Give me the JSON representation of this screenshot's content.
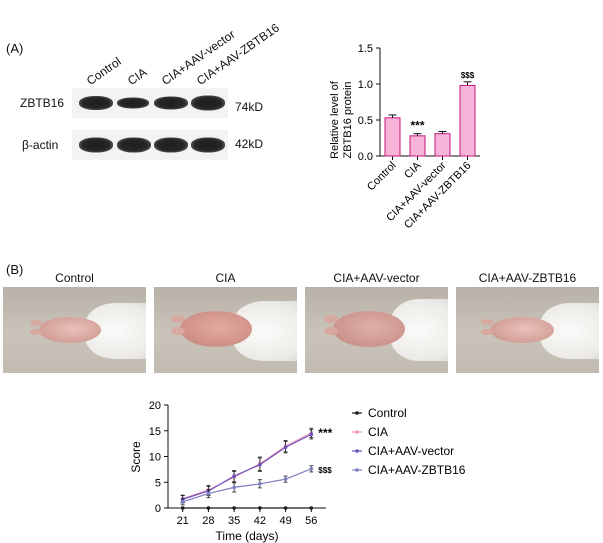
{
  "panelA": {
    "label": "(A)",
    "lanes": [
      "Control",
      "CIA",
      "CIA+AAV-vector",
      "CIA+AAV-ZBTB16"
    ],
    "blots": [
      {
        "name": "ZBTB16",
        "kd": "74kD"
      },
      {
        "name": "β-actin",
        "kd": "42kD"
      }
    ]
  },
  "panelB": {
    "label": "(B)",
    "photo_titles": [
      "Control",
      "CIA",
      "CIA+AAV-vector",
      "CIA+AAV-ZBTB16"
    ]
  },
  "colors": {
    "bar_fill": "#f7b3d8",
    "bar_edge": "#c2187a",
    "control": "#1a1a1a",
    "cia": "#f29cb7",
    "vector": "#6b4fbf",
    "zbtb16": "#7d7dc4"
  },
  "chart_data": [
    {
      "type": "bar",
      "categories": [
        "Control",
        "CIA",
        "CIA+AAV-vector",
        "CIA+AAV-ZBTB16"
      ],
      "values": [
        0.53,
        0.28,
        0.31,
        0.98
      ],
      "errors": [
        0.04,
        0.03,
        0.03,
        0.05
      ],
      "annotations": [
        {
          "category": "CIA",
          "text": "***"
        },
        {
          "category": "CIA+AAV-ZBTB16",
          "text": "$$$"
        }
      ],
      "title": "",
      "xlabel": "",
      "ylabel": "Relative level of ZBTB16 protein",
      "ylim": [
        0,
        1.5
      ],
      "yticks": [
        "0.0",
        "0.5",
        "1.0",
        "1.5"
      ]
    },
    {
      "type": "line",
      "x": [
        21,
        28,
        35,
        42,
        49,
        56
      ],
      "series": [
        {
          "name": "Control",
          "values": [
            0,
            0,
            0,
            0,
            0,
            0
          ],
          "errors": [
            0,
            0,
            0,
            0,
            0,
            0
          ]
        },
        {
          "name": "CIA",
          "values": [
            1.8,
            3.5,
            6.0,
            8.6,
            12.0,
            14.6
          ],
          "errors": [
            0.7,
            0.9,
            1.1,
            1.3,
            1.1,
            0.9
          ]
        },
        {
          "name": "CIA+AAV-vector",
          "values": [
            1.7,
            3.3,
            6.2,
            8.4,
            11.8,
            14.3
          ],
          "errors": [
            0.7,
            0.9,
            1.1,
            1.3,
            1.1,
            0.9
          ]
        },
        {
          "name": "CIA+AAV-ZBTB16",
          "values": [
            1.2,
            2.8,
            4.0,
            4.7,
            5.6,
            7.6
          ],
          "errors": [
            0.6,
            0.8,
            0.9,
            0.8,
            0.6,
            0.6
          ]
        }
      ],
      "annotations": [
        {
          "series": "CIA",
          "text": "***"
        },
        {
          "series": "CIA+AAV-ZBTB16",
          "text": "$$$"
        }
      ],
      "title": "",
      "xlabel": "Time (days)",
      "ylabel": "Score",
      "ylim": [
        0,
        20
      ],
      "yticks": [
        "0",
        "5",
        "10",
        "15",
        "20"
      ],
      "xticks": [
        "21",
        "28",
        "35",
        "42",
        "49",
        "56"
      ],
      "legend": "right",
      "grid": false
    }
  ]
}
